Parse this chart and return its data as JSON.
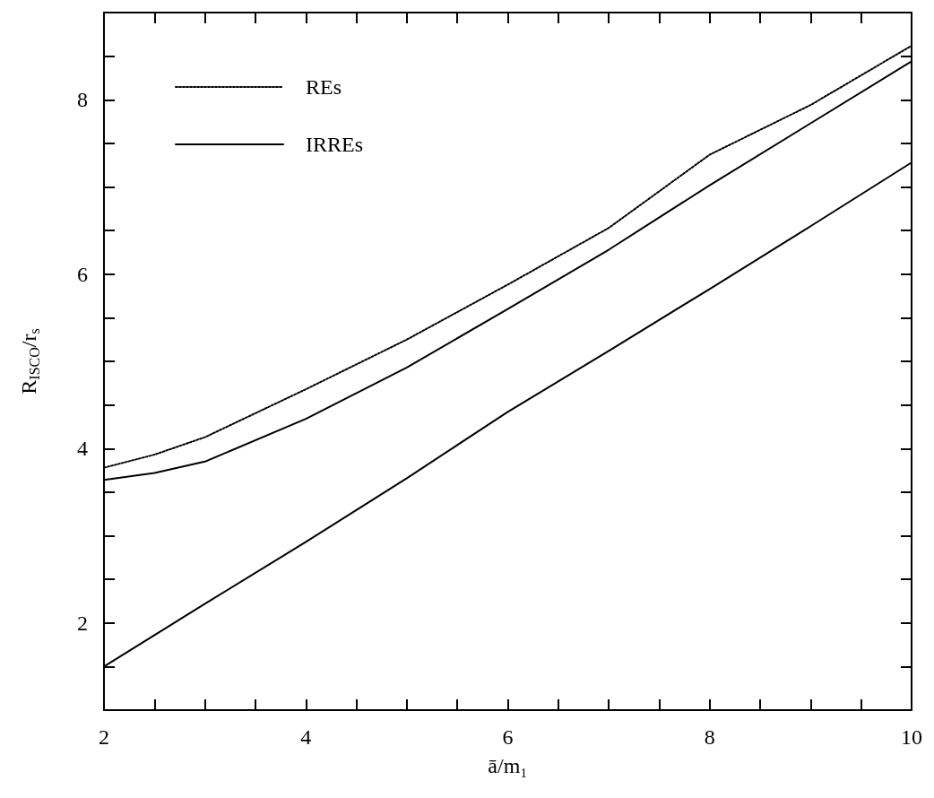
{
  "chart_data": {
    "type": "line",
    "xlabel": "ā/m₁",
    "ylabel": "R$_{ISCO}$/r$_{s}$",
    "x": [
      2,
      2.5,
      3,
      4,
      5,
      6,
      7,
      8,
      9,
      10
    ],
    "series": [
      {
        "name": "REs",
        "color": "#000000",
        "line_style": "dotted",
        "values": [
          3.78,
          3.93,
          4.13,
          4.68,
          5.25,
          5.88,
          6.53,
          7.37,
          7.94,
          8.62
        ]
      },
      {
        "name": "IRREs",
        "color": "#000000",
        "line_style": "solid",
        "values": [
          3.64,
          3.72,
          3.85,
          4.34,
          4.93,
          5.6,
          6.28,
          7.02,
          7.73,
          8.44
        ]
      },
      {
        "color": "#000000",
        "line_style": "solid",
        "values": [
          1.5,
          1.86,
          2.22,
          2.93,
          3.66,
          4.42,
          5.12,
          5.83,
          6.55,
          7.28
        ]
      }
    ],
    "xlim": [
      2,
      10
    ],
    "ylim": [
      1,
      9
    ],
    "xticks": [
      2,
      {
        "value": 2.5,
        "label": null
      },
      {
        "value": 3,
        "label": null
      },
      {
        "value": 3.5,
        "label": null
      },
      4,
      {
        "value": 4.5,
        "label": null
      },
      {
        "value": 5,
        "label": null
      },
      {
        "value": 5.5,
        "label": null
      },
      6,
      {
        "value": 6.5,
        "label": null
      },
      {
        "value": 7,
        "label": null
      },
      {
        "value": 7.5,
        "label": null
      },
      8,
      {
        "value": 8.5,
        "label": null
      },
      {
        "value": 9,
        "label": null
      },
      {
        "value": 9.5,
        "label": null
      },
      10
    ],
    "yticks": [
      {
        "value": 1.5,
        "label": null
      },
      2,
      {
        "value": 2.5,
        "label": null
      },
      {
        "value": 3,
        "label": null
      },
      {
        "value": 3.5,
        "label": null
      },
      4,
      {
        "value": 4.5,
        "label": null
      },
      {
        "value": 5,
        "label": null
      },
      {
        "value": 5.5,
        "label": null
      },
      6,
      {
        "value": 6.5,
        "label": null
      },
      {
        "value": 7,
        "label": null
      },
      {
        "value": 7.5,
        "label": null
      },
      8,
      {
        "value": 8.5,
        "label": null
      }
    ],
    "grid": false,
    "legend": "top left",
    "marker": "none"
  }
}
